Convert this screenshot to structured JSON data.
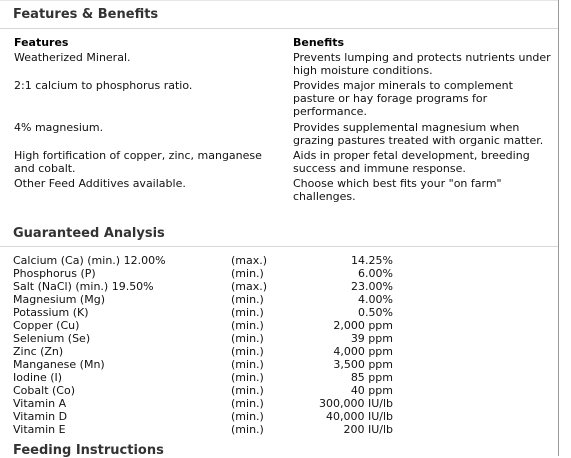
{
  "sections": {
    "features_benefits_title": "Features & Benefits",
    "guaranteed_analysis_title": "Guaranteed Analysis",
    "next_section_title": "Feeding Instructions"
  },
  "features_benefits": {
    "features_header": "Features",
    "benefits_header": "Benefits",
    "rows": [
      {
        "feature": "Weatherized Mineral.",
        "benefit": "Prevents lumping and protects nutrients under high moisture conditions."
      },
      {
        "feature": "2:1 calcium to phosphorus ratio.",
        "benefit": "Provides major minerals to complement pasture or hay forage programs for performance."
      },
      {
        "feature": "4% magnesium.",
        "benefit": "Provides supplemental magnesium when grazing pastures treated with organic matter."
      },
      {
        "feature": "High fortification of copper, zinc, manganese and cobalt.",
        "benefit": "Aids in proper fetal development, breeding success and immune response."
      },
      {
        "feature": "Other Feed Additives available.",
        "benefit": "Choose which best fits your \"on farm\" challenges."
      }
    ]
  },
  "guaranteed_analysis": [
    {
      "name": "Calcium (Ca) (min.) 12.00%",
      "qualifier": "(max.)",
      "value": "14.25%"
    },
    {
      "name": "Phosphorus (P)",
      "qualifier": "(min.)",
      "value": "6.00%"
    },
    {
      "name": "Salt (NaCl) (min.) 19.50%",
      "qualifier": "(max.)",
      "value": "23.00%"
    },
    {
      "name": "Magnesium (Mg)",
      "qualifier": "(min.)",
      "value": "4.00%"
    },
    {
      "name": "Potassium (K)",
      "qualifier": "(min.)",
      "value": "0.50%"
    },
    {
      "name": "Copper (Cu)",
      "qualifier": "(min.)",
      "value": "2,000 ppm"
    },
    {
      "name": "Selenium (Se)",
      "qualifier": "(min.)",
      "value": "39 ppm"
    },
    {
      "name": "Zinc (Zn)",
      "qualifier": "(min.)",
      "value": "4,000 ppm"
    },
    {
      "name": "Manganese (Mn)",
      "qualifier": "(min.)",
      "value": "3,500 ppm"
    },
    {
      "name": "Iodine (I)",
      "qualifier": "(min.)",
      "value": "85 ppm"
    },
    {
      "name": "Cobalt (Co)",
      "qualifier": "(min.)",
      "value": "40 ppm"
    },
    {
      "name": "Vitamin A",
      "qualifier": "(min.)",
      "value": "300,000 IU/lb"
    },
    {
      "name": "Vitamin D",
      "qualifier": "(min.)",
      "value": "40,000 IU/lb"
    },
    {
      "name": "Vitamin E",
      "qualifier": "(min.)",
      "value": "200 IU/lb"
    }
  ]
}
